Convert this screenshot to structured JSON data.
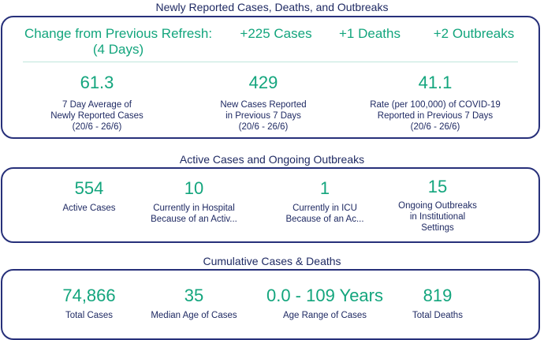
{
  "sections": {
    "top_title": "Newly Reported Cases, Deaths, and Outbreaks",
    "active_title": "Active Cases and Ongoing Outbreaks",
    "cumulative_title": "Cumulative Cases & Deaths"
  },
  "change": {
    "label_line1": "Change from Previous Refresh:",
    "label_line2": "(4 Days)",
    "cases": "+225 Cases",
    "deaths": "+1 Deaths",
    "outbreaks": "+2 Outbreaks"
  },
  "newly": [
    {
      "value": "61.3",
      "l1": "7 Day Average of",
      "l2": "Newly Reported Cases",
      "l3": "(20/6 - 26/6)"
    },
    {
      "value": "429",
      "l1": "New Cases Reported",
      "l2": "in Previous 7 Days",
      "l3": "(20/6 - 26/6)"
    },
    {
      "value": "41.1",
      "l1": "Rate (per 100,000) of COVID-19",
      "l2": "Reported in Previous 7 Days",
      "l3": "(20/6 - 26/6)"
    }
  ],
  "active": [
    {
      "value": "554",
      "l1": "Active Cases",
      "l2": "",
      "l3": ""
    },
    {
      "value": "10",
      "l1": "Currently in Hospital",
      "l2": "Because of an Activ...",
      "l3": ""
    },
    {
      "value": "1",
      "l1": "Currently in ICU",
      "l2": "Because of an Ac...",
      "l3": ""
    },
    {
      "value": "15",
      "l1": "Ongoing Outbreaks",
      "l2": "in Institutional",
      "l3": "Settings"
    }
  ],
  "cumulative": [
    {
      "value": "74,866",
      "l1": "Total Cases"
    },
    {
      "value": "35",
      "l1": "Median Age of Cases"
    },
    {
      "value": "0.0 - 109 Years",
      "l1": "Age Range of Cases"
    },
    {
      "value": "819",
      "l1": "Total Deaths"
    }
  ]
}
